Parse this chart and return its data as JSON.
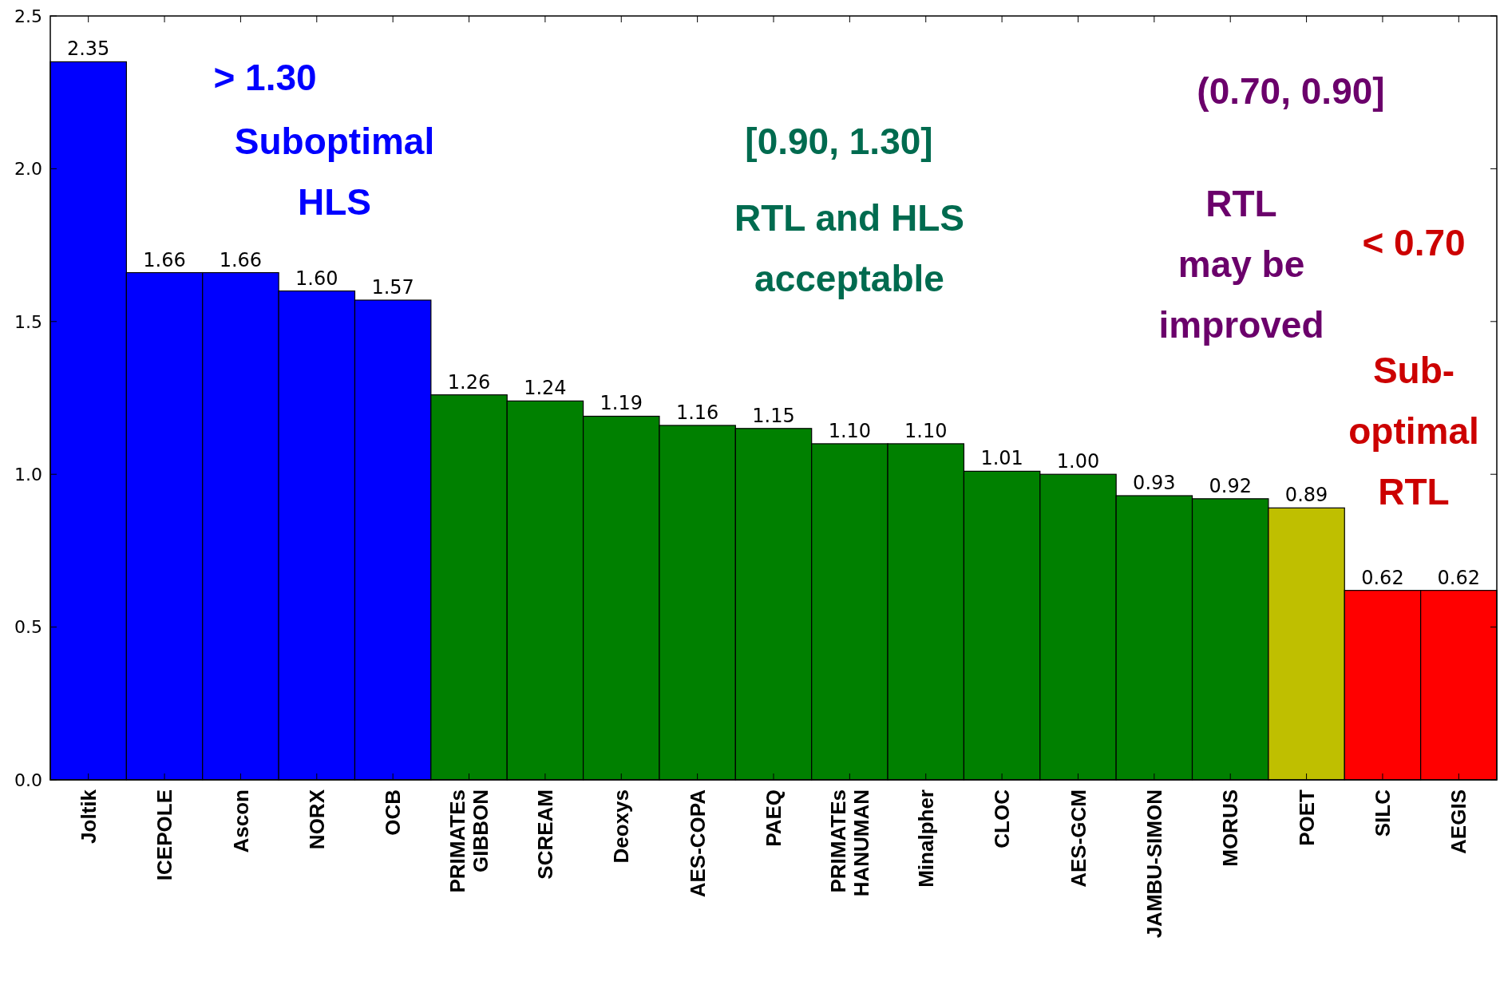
{
  "chart_data": {
    "type": "bar",
    "categories": [
      "Joltik",
      "ICEPOLE",
      "Ascon",
      "NORX",
      "OCB",
      "PRIMATEs\nGIBBON",
      "SCREAM",
      "Deoxys",
      "AES-COPA",
      "PAEQ",
      "PRIMATEs\nHANUMAN",
      "Minalpher",
      "CLOC",
      "AES-GCM",
      "JAMBU-SIMON",
      "MORUS",
      "POET",
      "SILC",
      "AEGIS"
    ],
    "values": [
      2.35,
      1.66,
      1.66,
      1.6,
      1.57,
      1.26,
      1.24,
      1.19,
      1.16,
      1.15,
      1.1,
      1.1,
      1.01,
      1.0,
      0.93,
      0.92,
      0.89,
      0.62,
      0.62
    ],
    "value_labels": [
      "2.35",
      "1.66",
      "1.66",
      "1.60",
      "1.57",
      "1.26",
      "1.24",
      "1.19",
      "1.16",
      "1.15",
      "1.10",
      "1.10",
      "1.01",
      "1.00",
      "0.93",
      "0.92",
      "0.89",
      "0.62",
      "0.62"
    ],
    "colors": [
      "#0000ff",
      "#0000ff",
      "#0000ff",
      "#0000ff",
      "#0000ff",
      "#008000",
      "#008000",
      "#008000",
      "#008000",
      "#008000",
      "#008000",
      "#008000",
      "#008000",
      "#008000",
      "#008000",
      "#008000",
      "#bfbf00",
      "#ff0000",
      "#ff0000"
    ],
    "ylim": [
      0,
      2.5
    ],
    "yticks": [
      {
        "value": 0,
        "label": "0.0"
      },
      {
        "value": 0.5,
        "label": "0.5"
      },
      {
        "value": 1,
        "label": "1.0"
      },
      {
        "value": 1.5,
        "label": "1.5"
      },
      {
        "value": 2,
        "label": "2.0"
      },
      {
        "value": 2.5,
        "label": "2.5"
      }
    ],
    "annotations": [
      "> 1.30",
      "Suboptimal\nHLS",
      "[0.90, 1.30]",
      "RTL and HLS\nacceptable",
      "(0.70, 0.90]",
      "RTL\nmay be\nimproved",
      "< 0.70",
      "Sub-\noptimal\nRTL"
    ]
  }
}
